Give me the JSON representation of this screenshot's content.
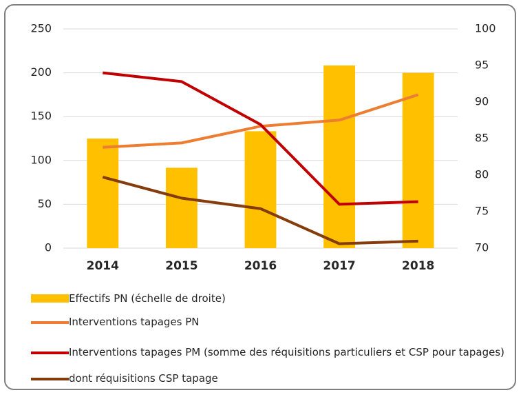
{
  "chart_data": {
    "type": "bar-line",
    "categories": [
      "2014",
      "2015",
      "2016",
      "2017",
      "2018"
    ],
    "series": [
      {
        "name": "Effectifs PN (échelle de droite)",
        "type": "bar",
        "axis": "y2",
        "color": "#ffc000",
        "values": [
          85,
          81,
          86,
          95,
          94
        ]
      },
      {
        "name": "Interventions tapages PN",
        "type": "line",
        "color": "#ed7d31",
        "values": [
          115,
          120,
          139,
          146,
          175
        ]
      },
      {
        "name": "Interventions tapages PM (somme des réquisitions particuliers et CSP pour tapages)",
        "type": "line",
        "color": "#c00000",
        "values": [
          200,
          190,
          141,
          50,
          53
        ]
      },
      {
        "name": "dont réquisitions CSP tapage",
        "type": "line",
        "color": "#843c0c",
        "values": [
          81,
          57,
          45,
          5,
          8
        ]
      }
    ],
    "ylim": [
      0,
      250
    ],
    "yticks": [
      0,
      50,
      100,
      150,
      200,
      250
    ],
    "y2lim": [
      70,
      100
    ],
    "y2ticks": [
      70,
      75,
      80,
      85,
      90,
      95,
      100
    ],
    "grid": true,
    "legend": "bottom"
  }
}
